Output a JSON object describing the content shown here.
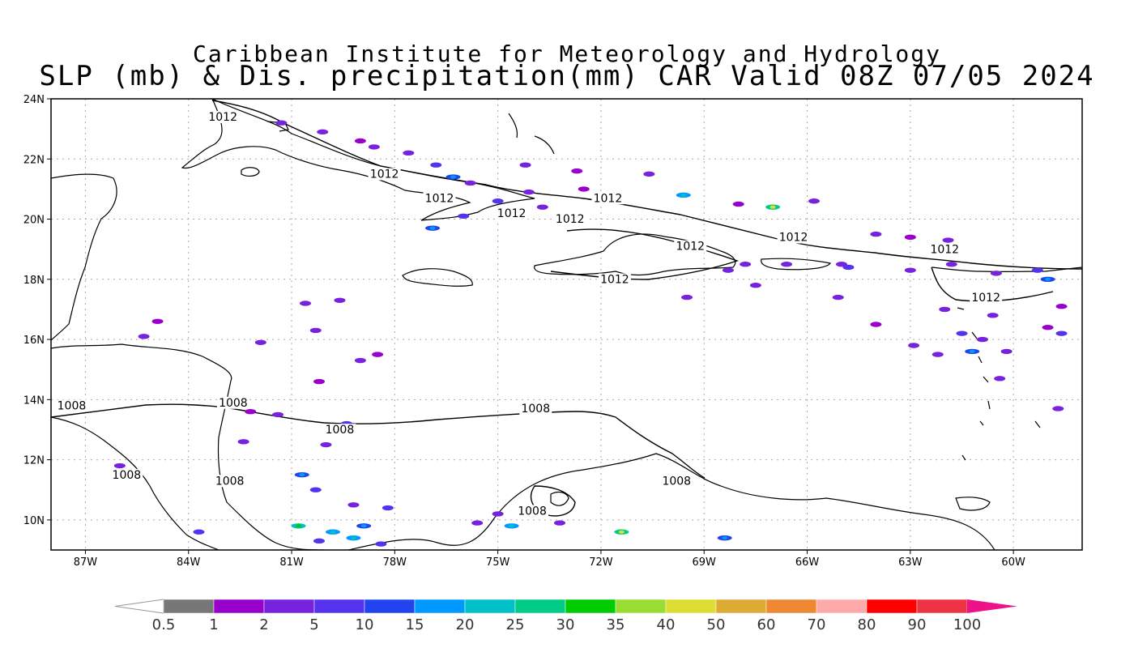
{
  "title": {
    "line1": "Caribbean Institute for Meteorology and Hydrology",
    "line2": "SLP (mb) & Dis. precipitation(mm) CAR Valid 08Z 07/05 2024"
  },
  "map": {
    "lon_range": [
      -88.0,
      -58.0
    ],
    "lat_range": [
      9.0,
      24.0
    ],
    "lon_ticks": [
      "87W",
      "84W",
      "81W",
      "78W",
      "75W",
      "72W",
      "69W",
      "66W",
      "63W",
      "60W"
    ],
    "lat_ticks": [
      "24N",
      "22N",
      "20N",
      "18N",
      "16N",
      "14N",
      "12N",
      "10N"
    ],
    "grid": "dotted"
  },
  "isobar_labels": [
    {
      "text": "1012",
      "lon": -83.0,
      "lat": 23.3
    },
    {
      "text": "1012",
      "lon": -78.3,
      "lat": 21.4
    },
    {
      "text": "1012",
      "lon": -76.7,
      "lat": 20.6
    },
    {
      "text": "1012",
      "lon": -74.6,
      "lat": 20.1
    },
    {
      "text": "1012",
      "lon": -72.9,
      "lat": 19.9
    },
    {
      "text": "1012",
      "lon": -71.8,
      "lat": 20.6
    },
    {
      "text": "1012",
      "lon": -69.4,
      "lat": 19.0
    },
    {
      "text": "1012",
      "lon": -66.4,
      "lat": 19.3
    },
    {
      "text": "1012",
      "lon": -62.0,
      "lat": 18.9
    },
    {
      "text": "1012",
      "lon": -71.6,
      "lat": 17.9
    },
    {
      "text": "1012",
      "lon": -60.8,
      "lat": 17.3
    },
    {
      "text": "1008",
      "lon": -87.4,
      "lat": 13.7
    },
    {
      "text": "1008",
      "lon": -82.7,
      "lat": 13.8
    },
    {
      "text": "1008",
      "lon": -79.6,
      "lat": 12.9
    },
    {
      "text": "1008",
      "lon": -73.9,
      "lat": 13.6
    },
    {
      "text": "1008",
      "lon": -85.8,
      "lat": 11.4
    },
    {
      "text": "1008",
      "lon": -82.8,
      "lat": 11.2
    },
    {
      "text": "1008",
      "lon": -69.8,
      "lat": 11.2
    },
    {
      "text": "1008",
      "lon": -74.0,
      "lat": 10.2
    }
  ],
  "colorbar": {
    "labels": [
      "0.5",
      "1",
      "2",
      "5",
      "10",
      "15",
      "20",
      "25",
      "30",
      "35",
      "40",
      "50",
      "60",
      "70",
      "80",
      "90",
      "100"
    ],
    "colors": [
      "#ffffff",
      "#777777",
      "#9900cc",
      "#7722dd",
      "#5533ee",
      "#2244ee",
      "#0099ff",
      "#00c0c8",
      "#00cc88",
      "#00cc00",
      "#99dd33",
      "#dddd33",
      "#ddaa33",
      "#ee8833",
      "#ffaaaa",
      "#ff0000",
      "#ee3344",
      "#ee1188"
    ]
  },
  "precip_cells": [
    {
      "lon": -81.3,
      "lat": 23.2,
      "v": 2
    },
    {
      "lon": -80.1,
      "lat": 22.9,
      "v": 2
    },
    {
      "lon": -79.0,
      "lat": 22.6,
      "v": 1
    },
    {
      "lon": -78.6,
      "lat": 22.4,
      "v": 2
    },
    {
      "lon": -77.6,
      "lat": 22.2,
      "v": 2
    },
    {
      "lon": -76.8,
      "lat": 21.8,
      "v": 5
    },
    {
      "lon": -76.3,
      "lat": 21.4,
      "v": 10
    },
    {
      "lon": -75.8,
      "lat": 21.2,
      "v": 2
    },
    {
      "lon": -74.2,
      "lat": 21.8,
      "v": 2
    },
    {
      "lon": -72.7,
      "lat": 21.6,
      "v": 1
    },
    {
      "lon": -70.6,
      "lat": 21.5,
      "v": 2
    },
    {
      "lon": -69.6,
      "lat": 20.8,
      "v": 15
    },
    {
      "lon": -68.0,
      "lat": 20.5,
      "v": 1
    },
    {
      "lon": -67.0,
      "lat": 20.4,
      "v": 25
    },
    {
      "lon": -65.8,
      "lat": 20.6,
      "v": 2
    },
    {
      "lon": -64.0,
      "lat": 19.5,
      "v": 2
    },
    {
      "lon": -63.0,
      "lat": 19.4,
      "v": 1
    },
    {
      "lon": -61.9,
      "lat": 19.3,
      "v": 2
    },
    {
      "lon": -65.0,
      "lat": 18.5,
      "v": 2
    },
    {
      "lon": -64.8,
      "lat": 18.4,
      "v": 5
    },
    {
      "lon": -63.0,
      "lat": 18.3,
      "v": 2
    },
    {
      "lon": -61.8,
      "lat": 18.5,
      "v": 2
    },
    {
      "lon": -60.5,
      "lat": 18.2,
      "v": 2
    },
    {
      "lon": -59.3,
      "lat": 18.3,
      "v": 5
    },
    {
      "lon": -59.0,
      "lat": 18.0,
      "v": 10
    },
    {
      "lon": -58.6,
      "lat": 17.1,
      "v": 1
    },
    {
      "lon": -62.0,
      "lat": 17.0,
      "v": 2
    },
    {
      "lon": -60.6,
      "lat": 16.8,
      "v": 2
    },
    {
      "lon": -61.5,
      "lat": 16.2,
      "v": 5
    },
    {
      "lon": -60.9,
      "lat": 16.0,
      "v": 2
    },
    {
      "lon": -60.2,
      "lat": 15.6,
      "v": 2
    },
    {
      "lon": -59.0,
      "lat": 16.4,
      "v": 1
    },
    {
      "lon": -58.6,
      "lat": 16.2,
      "v": 5
    },
    {
      "lon": -62.9,
      "lat": 15.8,
      "v": 2
    },
    {
      "lon": -64.0,
      "lat": 16.5,
      "v": 1
    },
    {
      "lon": -62.2,
      "lat": 15.5,
      "v": 2
    },
    {
      "lon": -61.2,
      "lat": 15.6,
      "v": 10
    },
    {
      "lon": -60.4,
      "lat": 14.7,
      "v": 2
    },
    {
      "lon": -58.7,
      "lat": 13.7,
      "v": 2
    },
    {
      "lon": -67.8,
      "lat": 18.5,
      "v": 2
    },
    {
      "lon": -66.6,
      "lat": 18.5,
      "v": 2
    },
    {
      "lon": -68.3,
      "lat": 18.3,
      "v": 2
    },
    {
      "lon": -67.5,
      "lat": 17.8,
      "v": 2
    },
    {
      "lon": -69.5,
      "lat": 17.4,
      "v": 2
    },
    {
      "lon": -65.1,
      "lat": 17.4,
      "v": 2
    },
    {
      "lon": -73.7,
      "lat": 20.4,
      "v": 2
    },
    {
      "lon": -76.0,
      "lat": 20.1,
      "v": 5
    },
    {
      "lon": -74.1,
      "lat": 20.9,
      "v": 2
    },
    {
      "lon": -76.9,
      "lat": 19.7,
      "v": 10
    },
    {
      "lon": -75.0,
      "lat": 20.6,
      "v": 5
    },
    {
      "lon": -72.5,
      "lat": 21.0,
      "v": 1
    },
    {
      "lon": -85.3,
      "lat": 16.1,
      "v": 2
    },
    {
      "lon": -84.9,
      "lat": 16.6,
      "v": 1
    },
    {
      "lon": -81.9,
      "lat": 15.9,
      "v": 2
    },
    {
      "lon": -80.3,
      "lat": 16.3,
      "v": 2
    },
    {
      "lon": -80.6,
      "lat": 17.2,
      "v": 2
    },
    {
      "lon": -79.6,
      "lat": 17.3,
      "v": 2
    },
    {
      "lon": -79.0,
      "lat": 15.3,
      "v": 2
    },
    {
      "lon": -78.5,
      "lat": 15.5,
      "v": 1
    },
    {
      "lon": -80.2,
      "lat": 14.6,
      "v": 1
    },
    {
      "lon": -81.4,
      "lat": 13.5,
      "v": 2
    },
    {
      "lon": -80.0,
      "lat": 12.5,
      "v": 2
    },
    {
      "lon": -79.4,
      "lat": 13.2,
      "v": 5
    },
    {
      "lon": -80.7,
      "lat": 11.5,
      "v": 10
    },
    {
      "lon": -80.3,
      "lat": 11.0,
      "v": 5
    },
    {
      "lon": -79.2,
      "lat": 10.5,
      "v": 2
    },
    {
      "lon": -78.2,
      "lat": 10.4,
      "v": 5
    },
    {
      "lon": -78.9,
      "lat": 9.8,
      "v": 10
    },
    {
      "lon": -79.8,
      "lat": 9.6,
      "v": 15
    },
    {
      "lon": -80.8,
      "lat": 9.8,
      "v": 20
    },
    {
      "lon": -79.2,
      "lat": 9.4,
      "v": 15
    },
    {
      "lon": -80.2,
      "lat": 9.3,
      "v": 5
    },
    {
      "lon": -78.4,
      "lat": 9.2,
      "v": 5
    },
    {
      "lon": -75.0,
      "lat": 10.2,
      "v": 2
    },
    {
      "lon": -74.6,
      "lat": 9.8,
      "v": 15
    },
    {
      "lon": -75.6,
      "lat": 9.9,
      "v": 2
    },
    {
      "lon": -73.2,
      "lat": 9.9,
      "v": 2
    },
    {
      "lon": -71.4,
      "lat": 9.6,
      "v": 25
    },
    {
      "lon": -68.4,
      "lat": 9.4,
      "v": 10
    },
    {
      "lon": -86.0,
      "lat": 11.8,
      "v": 2
    },
    {
      "lon": -83.7,
      "lat": 9.6,
      "v": 5
    },
    {
      "lon": -82.4,
      "lat": 12.6,
      "v": 2
    },
    {
      "lon": -82.2,
      "lat": 13.6,
      "v": 1
    }
  ]
}
